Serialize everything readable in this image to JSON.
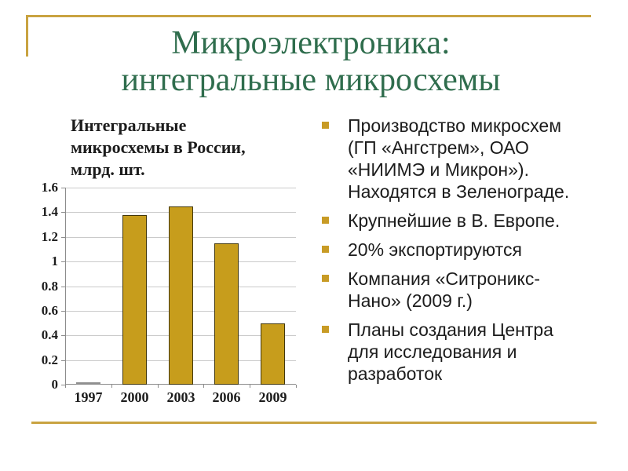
{
  "title": {
    "line1": "Микроэлектроника:",
    "line2": "интегральные микросхемы",
    "color": "#2f6d4d"
  },
  "accent_color": "#c9a341",
  "bullet_marker_color": "#c89b25",
  "text_color": "#1c1c1c",
  "bullets": [
    "Производство микросхем\n(ГП «Ангстрем», ОАО\n«НИИМЭ и Микрон»).\nНаходятся в Зеленограде.",
    "Крупнейшие в В. Европе.",
    "20% экспортируются",
    "Компания «Ситроникс-\nНано» (2009 г.)",
    "Планы создания Центра\nдля исследования и\nразработок"
  ],
  "chart_data": {
    "type": "bar",
    "title": "Интегральные микросхемы в России, млрд. шт.",
    "categories": [
      "1997",
      "2000",
      "2003",
      "2006",
      "2009"
    ],
    "values": [
      0.01,
      1.38,
      1.45,
      1.15,
      0.5
    ],
    "xlabel": "",
    "ylabel": "млрд. шт.",
    "ylim": [
      0,
      1.6
    ],
    "ytick_labels": [
      "0",
      "0.2",
      "0.4",
      "0.6",
      "0.8",
      "1",
      "1.2",
      "1.4",
      "1.6"
    ],
    "grid": true,
    "legend": false,
    "bar_color": "#c79d1c",
    "bar_border_color": "#42370b",
    "near_zero_bar_color": "#8f8f8f",
    "grid_color": "#cacaca",
    "axis_color": "#8c8c8c"
  }
}
